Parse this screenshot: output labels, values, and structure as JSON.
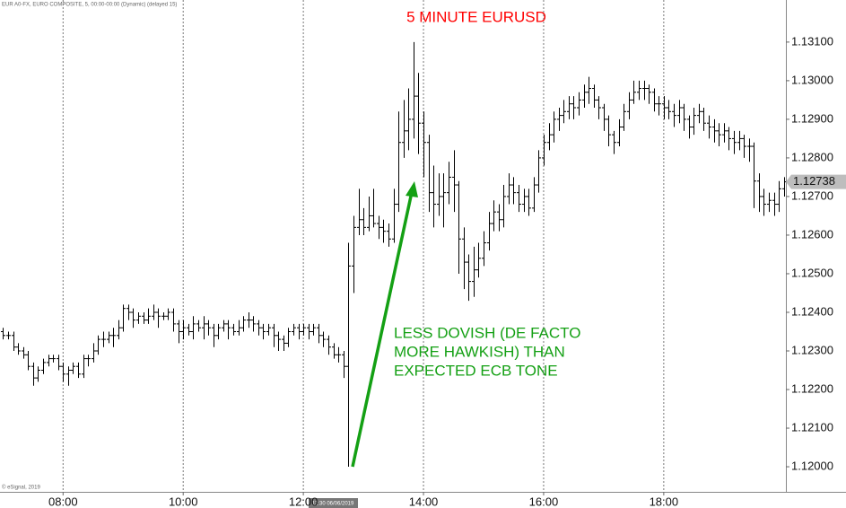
{
  "chart_data": {
    "type": "ohlc",
    "title": "5 MINUTE EURUSD",
    "annotation": [
      "LESS DOVISH (DE FACTO",
      "MORE HAWKISH) THAN",
      "EXPECTED ECB TONE"
    ],
    "header": "EUR A0-FX, EURO COMPOSITE, 5, 00:00-00:00 (Dynamic) (delayed 15)",
    "footer": "© eSignal, 2019",
    "cursor_label": "12:30 06/06/2019",
    "last_value_label": "1.12738",
    "color": "#000000",
    "grid": "x",
    "x": [
      "07:00",
      "07:05",
      "07:10",
      "07:15",
      "07:20",
      "07:25",
      "07:30",
      "07:35",
      "07:40",
      "07:45",
      "07:50",
      "07:55",
      "08:00",
      "08:05",
      "08:10",
      "08:15",
      "08:20",
      "08:25",
      "08:30",
      "08:35",
      "08:40",
      "08:45",
      "08:50",
      "08:55",
      "09:00",
      "09:05",
      "09:10",
      "09:15",
      "09:20",
      "09:25",
      "09:30",
      "09:35",
      "09:40",
      "09:45",
      "09:50",
      "09:55",
      "10:00",
      "10:05",
      "10:10",
      "10:15",
      "10:20",
      "10:25",
      "10:30",
      "10:35",
      "10:40",
      "10:45",
      "10:50",
      "10:55",
      "11:00",
      "11:05",
      "11:10",
      "11:15",
      "11:20",
      "11:25",
      "11:30",
      "11:35",
      "11:40",
      "11:45",
      "11:50",
      "11:55",
      "12:00",
      "12:05",
      "12:10",
      "12:15",
      "12:20",
      "12:25",
      "12:30",
      "12:35",
      "12:40",
      "12:45",
      "12:50",
      "12:55",
      "13:00",
      "13:05",
      "13:10",
      "13:15",
      "13:20",
      "13:25",
      "13:30",
      "13:35",
      "13:40",
      "13:45",
      "13:50",
      "13:55",
      "14:00",
      "14:05",
      "14:10",
      "14:15",
      "14:20",
      "14:25",
      "14:30",
      "14:35",
      "14:40",
      "14:45",
      "14:50",
      "14:55",
      "15:00",
      "15:05",
      "15:10",
      "15:15",
      "15:20",
      "15:25",
      "15:30",
      "15:35",
      "15:40",
      "15:45",
      "15:50",
      "15:55",
      "16:00",
      "16:05",
      "16:10",
      "16:15",
      "16:20",
      "16:25",
      "16:30",
      "16:35",
      "16:40",
      "16:45",
      "16:50",
      "16:55",
      "17:00",
      "17:05",
      "17:10",
      "17:15",
      "17:20",
      "17:25",
      "17:30",
      "17:35",
      "17:40",
      "17:45",
      "17:50",
      "17:55",
      "18:00",
      "18:05",
      "18:10",
      "18:15",
      "18:20",
      "18:25",
      "18:30",
      "18:35",
      "18:40",
      "18:45",
      "18:50",
      "18:55",
      "19:00",
      "19:05",
      "19:10",
      "19:15",
      "19:20",
      "19:25",
      "19:30",
      "19:35",
      "19:40",
      "19:45",
      "19:50",
      "19:55",
      "20:00"
    ],
    "open": [
      1.1235,
      1.1234,
      1.1234,
      1.1231,
      1.123,
      1.1229,
      1.1226,
      1.1223,
      1.1225,
      1.1227,
      1.1228,
      1.1228,
      1.1226,
      1.1224,
      1.1225,
      1.1226,
      1.1224,
      1.1228,
      1.1228,
      1.123,
      1.1233,
      1.1233,
      1.1234,
      1.1234,
      1.1236,
      1.1241,
      1.124,
      1.1238,
      1.1239,
      1.1238,
      1.1239,
      1.124,
      1.1239,
      1.1239,
      1.124,
      1.1237,
      1.1235,
      1.1236,
      1.1235,
      1.1237,
      1.1236,
      1.1237,
      1.1236,
      1.1234,
      1.1236,
      1.1237,
      1.1236,
      1.1235,
      1.1236,
      1.1238,
      1.1238,
      1.1237,
      1.1236,
      1.1235,
      1.1236,
      1.1234,
      1.1233,
      1.1232,
      1.1235,
      1.1236,
      1.1235,
      1.1236,
      1.1235,
      1.1236,
      1.1234,
      1.1233,
      1.1231,
      1.1229,
      1.1229,
      1.1226,
      1.1252,
      1.1262,
      1.1264,
      1.1262,
      1.1265,
      1.1263,
      1.1262,
      1.1261,
      1.1259,
      1.1268,
      1.1284,
      1.1287,
      1.129,
      1.1296,
      1.1289,
      1.1284,
      1.1271,
      1.1268,
      1.127,
      1.1271,
      1.1275,
      1.1273,
      1.1259,
      1.1253,
      1.1248,
      1.1251,
      1.1254,
      1.1258,
      1.1263,
      1.1266,
      1.1264,
      1.127,
      1.1273,
      1.1271,
      1.1268,
      1.127,
      1.1267,
      1.1273,
      1.128,
      1.1284,
      1.1286,
      1.129,
      1.1291,
      1.1292,
      1.1294,
      1.1293,
      1.1295,
      1.1297,
      1.1298,
      1.1295,
      1.1293,
      1.129,
      1.1286,
      1.1284,
      1.1288,
      1.1292,
      1.1295,
      1.1297,
      1.1298,
      1.1298,
      1.1297,
      1.1294,
      1.1294,
      1.1293,
      1.1292,
      1.1291,
      1.1293,
      1.129,
      1.1288,
      1.1291,
      1.1292,
      1.1289,
      1.1288,
      1.1287,
      1.1286,
      1.1287,
      1.1285,
      1.1284,
      1.1285,
      1.1283,
      1.1283,
      1.1274,
      1.127,
      1.1268,
      1.1269,
      1.1268,
      1.1272
    ],
    "high": [
      1.1236,
      1.1235,
      1.1235,
      1.1232,
      1.1231,
      1.123,
      1.1227,
      1.1226,
      1.1228,
      1.1229,
      1.1229,
      1.1229,
      1.1227,
      1.1226,
      1.1227,
      1.1227,
      1.1229,
      1.1229,
      1.1232,
      1.1234,
      1.1235,
      1.1235,
      1.1236,
      1.1238,
      1.1242,
      1.1242,
      1.1241,
      1.124,
      1.124,
      1.1241,
      1.1242,
      1.1241,
      1.124,
      1.1241,
      1.1241,
      1.1238,
      1.1238,
      1.1237,
      1.1239,
      1.1238,
      1.1239,
      1.1238,
      1.1237,
      1.1237,
      1.1238,
      1.1238,
      1.1237,
      1.1238,
      1.1239,
      1.124,
      1.1239,
      1.1238,
      1.1237,
      1.1237,
      1.1237,
      1.1235,
      1.1234,
      1.1236,
      1.1237,
      1.1237,
      1.1237,
      1.1237,
      1.1237,
      1.1237,
      1.1235,
      1.1234,
      1.1232,
      1.1231,
      1.123,
      1.1258,
      1.1265,
      1.1272,
      1.1267,
      1.127,
      1.1272,
      1.1265,
      1.1264,
      1.1263,
      1.1272,
      1.1292,
      1.1295,
      1.1298,
      1.131,
      1.1302,
      1.1292,
      1.1286,
      1.1278,
      1.1276,
      1.1276,
      1.1279,
      1.1282,
      1.1274,
      1.1262,
      1.1255,
      1.1257,
      1.1258,
      1.1261,
      1.1266,
      1.1269,
      1.1268,
      1.1273,
      1.1276,
      1.1275,
      1.1273,
      1.1272,
      1.1272,
      1.1275,
      1.1282,
      1.1286,
      1.1289,
      1.1292,
      1.1293,
      1.1295,
      1.1296,
      1.1296,
      1.1297,
      1.1299,
      1.1301,
      1.1299,
      1.1296,
      1.1294,
      1.1291,
      1.1287,
      1.129,
      1.1294,
      1.1297,
      1.13,
      1.13,
      1.13,
      1.1299,
      1.1298,
      1.1296,
      1.1296,
      1.1295,
      1.1294,
      1.1295,
      1.1294,
      1.1291,
      1.1293,
      1.1294,
      1.1293,
      1.1291,
      1.129,
      1.1289,
      1.1289,
      1.1288,
      1.1287,
      1.1287,
      1.1286,
      1.1285,
      1.1284,
      1.1276,
      1.1272,
      1.1271,
      1.1271,
      1.1274,
      1.1275
    ],
    "low": [
      1.1233,
      1.1233,
      1.123,
      1.1229,
      1.1228,
      1.1225,
      1.1221,
      1.1222,
      1.1224,
      1.1226,
      1.1227,
      1.1225,
      1.1222,
      1.1221,
      1.1224,
      1.1223,
      1.1223,
      1.1226,
      1.1227,
      1.1229,
      1.1231,
      1.1232,
      1.1231,
      1.1233,
      1.1235,
      1.1238,
      1.1236,
      1.1237,
      1.1237,
      1.1237,
      1.1238,
      1.1236,
      1.1238,
      1.1238,
      1.1235,
      1.1232,
      1.1233,
      1.1234,
      1.1233,
      1.1235,
      1.1233,
      1.1234,
      1.1231,
      1.1233,
      1.1235,
      1.1233,
      1.1234,
      1.1234,
      1.1235,
      1.1236,
      1.1235,
      1.1234,
      1.1233,
      1.1234,
      1.1231,
      1.123,
      1.123,
      1.1231,
      1.1234,
      1.1233,
      1.1234,
      1.1233,
      1.1234,
      1.1232,
      1.1231,
      1.1229,
      1.1228,
      1.1227,
      1.1223,
      1.12,
      1.1245,
      1.126,
      1.126,
      1.1261,
      1.1262,
      1.1259,
      1.1258,
      1.1257,
      1.1258,
      1.1266,
      1.128,
      1.1282,
      1.1285,
      1.1281,
      1.1275,
      1.1266,
      1.1262,
      1.1265,
      1.1262,
      1.1268,
      1.1266,
      1.125,
      1.1246,
      1.1243,
      1.1244,
      1.1249,
      1.1252,
      1.1256,
      1.1261,
      1.1261,
      1.1262,
      1.1268,
      1.1268,
      1.1266,
      1.1266,
      1.1265,
      1.1266,
      1.1271,
      1.1278,
      1.1282,
      1.1284,
      1.1287,
      1.1289,
      1.129,
      1.129,
      1.1291,
      1.1293,
      1.1294,
      1.1293,
      1.129,
      1.1287,
      1.1283,
      1.1281,
      1.1283,
      1.1287,
      1.129,
      1.1294,
      1.1295,
      1.1295,
      1.1294,
      1.1292,
      1.1291,
      1.129,
      1.129,
      1.1288,
      1.1289,
      1.1287,
      1.1285,
      1.1286,
      1.1289,
      1.1287,
      1.1285,
      1.1284,
      1.1283,
      1.1284,
      1.1282,
      1.1281,
      1.1282,
      1.128,
      1.1279,
      1.1267,
      1.1266,
      1.1265,
      1.1266,
      1.1265,
      1.1266,
      1.127
    ],
    "close": [
      1.1234,
      1.1234,
      1.1231,
      1.123,
      1.1229,
      1.1226,
      1.1223,
      1.1225,
      1.1227,
      1.1228,
      1.1228,
      1.1226,
      1.1224,
      1.1225,
      1.1226,
      1.1224,
      1.1228,
      1.1228,
      1.123,
      1.1233,
      1.1233,
      1.1234,
      1.1234,
      1.1236,
      1.1241,
      1.124,
      1.1238,
      1.1239,
      1.1238,
      1.1239,
      1.124,
      1.1239,
      1.1239,
      1.124,
      1.1237,
      1.1235,
      1.1236,
      1.1235,
      1.1237,
      1.1236,
      1.1237,
      1.1236,
      1.1234,
      1.1236,
      1.1237,
      1.1236,
      1.1235,
      1.1236,
      1.1238,
      1.1238,
      1.1237,
      1.1236,
      1.1235,
      1.1236,
      1.1234,
      1.1233,
      1.1232,
      1.1235,
      1.1236,
      1.1235,
      1.1236,
      1.1235,
      1.1236,
      1.1234,
      1.1233,
      1.1231,
      1.1229,
      1.1229,
      1.1226,
      1.1252,
      1.1262,
      1.1264,
      1.1262,
      1.1265,
      1.1263,
      1.1262,
      1.1261,
      1.1259,
      1.1268,
      1.1284,
      1.1287,
      1.129,
      1.1296,
      1.1289,
      1.1284,
      1.1271,
      1.1268,
      1.127,
      1.1271,
      1.1275,
      1.1273,
      1.1259,
      1.1253,
      1.1248,
      1.1251,
      1.1254,
      1.1258,
      1.1263,
      1.1266,
      1.1264,
      1.127,
      1.1273,
      1.1271,
      1.1268,
      1.127,
      1.1267,
      1.1273,
      1.128,
      1.1284,
      1.1286,
      1.129,
      1.1291,
      1.1292,
      1.1294,
      1.1293,
      1.1295,
      1.1297,
      1.1298,
      1.1295,
      1.1293,
      1.129,
      1.1286,
      1.1284,
      1.1288,
      1.1292,
      1.1295,
      1.1297,
      1.1298,
      1.1298,
      1.1297,
      1.1294,
      1.1294,
      1.1293,
      1.1292,
      1.1291,
      1.1293,
      1.129,
      1.1288,
      1.1291,
      1.1292,
      1.1289,
      1.1288,
      1.1287,
      1.1286,
      1.1287,
      1.1285,
      1.1284,
      1.1285,
      1.1283,
      1.1283,
      1.1274,
      1.127,
      1.1268,
      1.1269,
      1.1268,
      1.1272,
      1.12738
    ],
    "xlim": [
      "06:57",
      "20:02"
    ],
    "xticks": [
      "08:00",
      "10:00",
      "12:00",
      "14:00",
      "16:00",
      "18:00"
    ],
    "ylim": [
      1.11935,
      1.13209
    ],
    "yticks": [
      {
        "value": 1.12,
        "label": "1.12000"
      },
      {
        "value": 1.121,
        "label": "1.12100"
      },
      {
        "value": 1.122,
        "label": "1.12200"
      },
      {
        "value": 1.123,
        "label": "1.12300"
      },
      {
        "value": 1.124,
        "label": "1.12400"
      },
      {
        "value": 1.125,
        "label": "1.12500"
      },
      {
        "value": 1.126,
        "label": "1.12600"
      },
      {
        "value": 1.127,
        "label": "1.12700"
      },
      {
        "value": 1.128,
        "label": "1.12800"
      },
      {
        "value": 1.129,
        "label": "1.12900"
      },
      {
        "value": 1.13,
        "label": "1.13000"
      },
      {
        "value": 1.131,
        "label": "1.13100"
      }
    ]
  }
}
